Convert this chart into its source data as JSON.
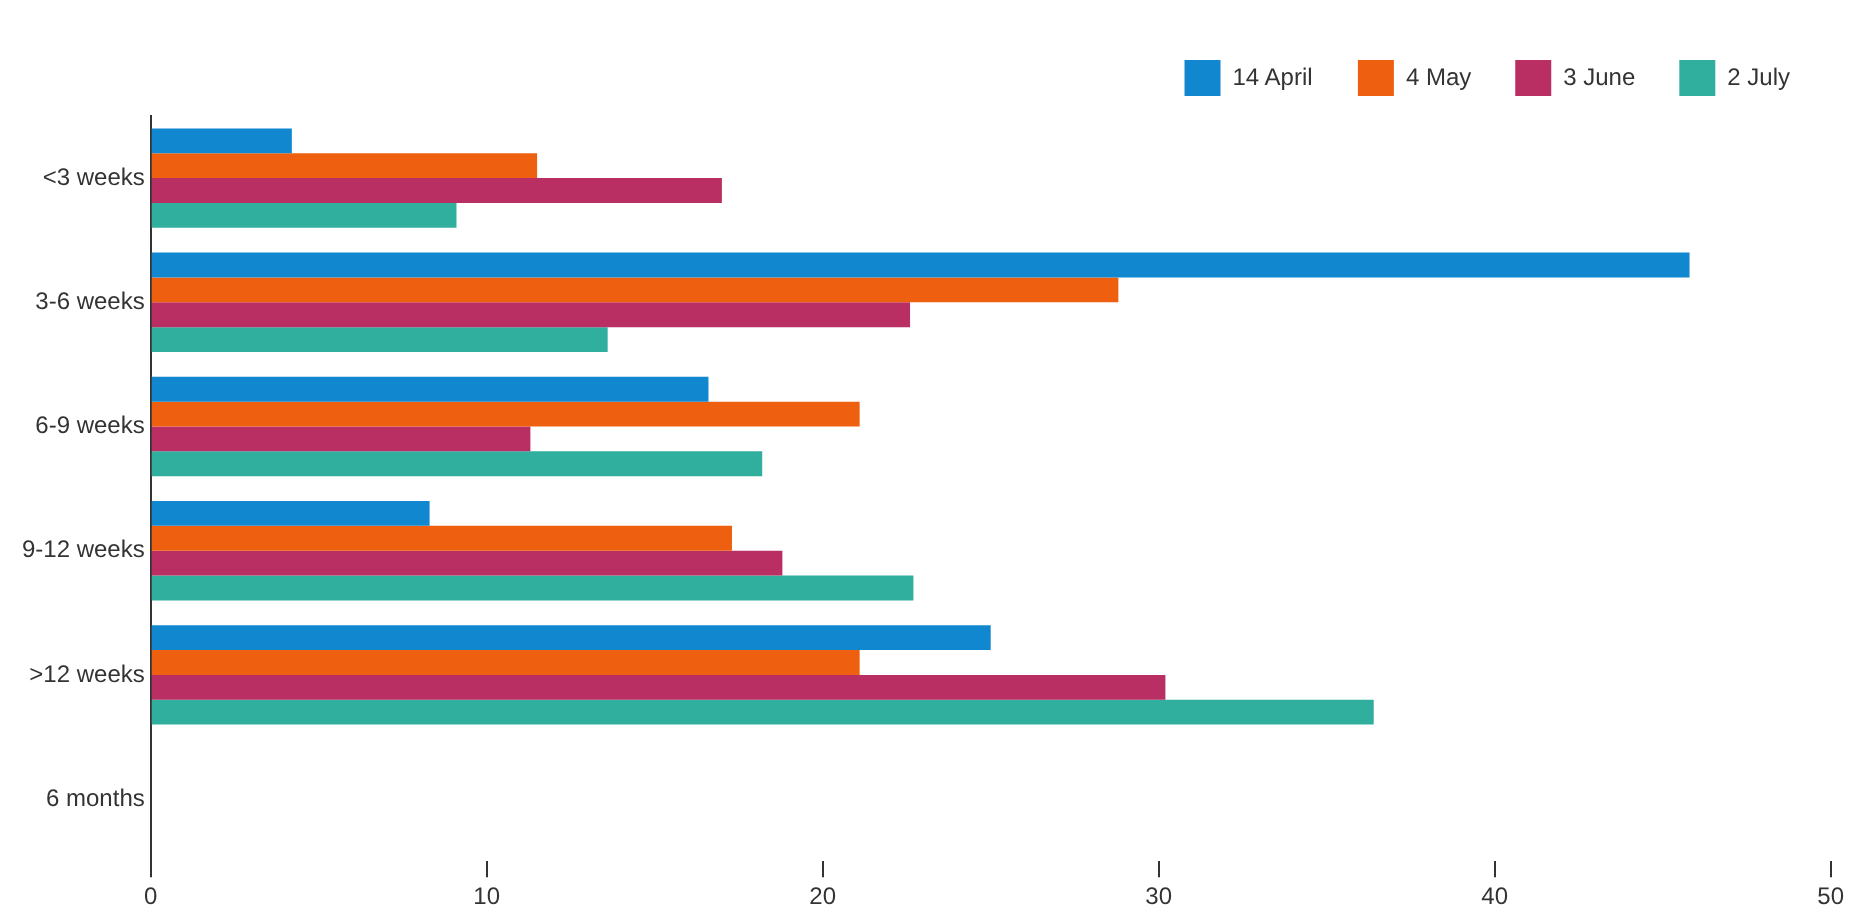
{
  "chart_data": {
    "type": "bar",
    "orientation": "horizontal",
    "categories": [
      "<3 weeks",
      "3-6 weeks",
      "6-9 weeks",
      "9-12 weeks",
      ">12 weeks",
      "6 months"
    ],
    "series": [
      {
        "name": "14 April",
        "color": "#1187cf",
        "values": [
          4.2,
          45.8,
          16.6,
          8.3,
          25.0,
          null
        ]
      },
      {
        "name": "4 May",
        "color": "#ee6010",
        "values": [
          11.5,
          28.8,
          21.1,
          17.3,
          21.1,
          null
        ]
      },
      {
        "name": "3 June",
        "color": "#b92f64",
        "values": [
          17.0,
          22.6,
          11.3,
          18.8,
          30.2,
          null
        ]
      },
      {
        "name": "2 July",
        "color": "#30ae9e",
        "values": [
          9.1,
          13.6,
          18.2,
          22.7,
          36.4,
          null
        ]
      }
    ],
    "xlim": [
      0,
      50
    ],
    "xticks": [
      0,
      10,
      20,
      30,
      40,
      50
    ],
    "grid": false,
    "legend": "top right"
  }
}
